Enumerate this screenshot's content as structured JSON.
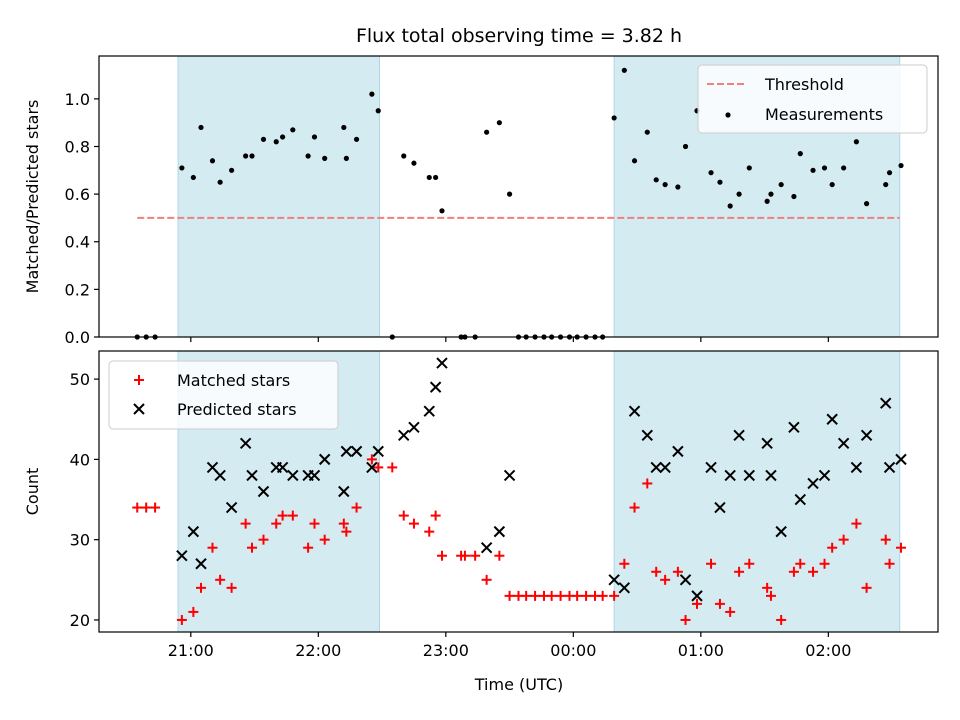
{
  "chart_data": {
    "title": "Flux total observing time = 3.82 h",
    "xlabel": "Time (UTC)",
    "x_ticks": [
      "21:00",
      "22:00",
      "23:00",
      "00:00",
      "01:00",
      "02:00"
    ],
    "x_tick_hours": [
      21,
      22,
      23,
      24,
      25,
      26
    ],
    "xlim_hours": [
      20.28,
      26.86
    ],
    "shaded_intervals_hours": [
      [
        20.9,
        22.48
      ],
      [
        24.32,
        26.56
      ]
    ],
    "colors": {
      "shade": "#add8e6",
      "threshold": "#f08080",
      "measurement": "#000000",
      "matched": "#ff0000",
      "predicted": "#000000"
    },
    "panels": [
      {
        "type": "scatter",
        "ylabel": "Matched/Predicted stars",
        "ylim": [
          0,
          1.18
        ],
        "y_ticks": [
          "0.0",
          "0.2",
          "0.4",
          "0.6",
          "0.8",
          "1.0"
        ],
        "y_tick_values": [
          0,
          0.2,
          0.4,
          0.6,
          0.8,
          1.0
        ],
        "legend_position": "top-right",
        "threshold": {
          "name": "Threshold",
          "value": 0.5,
          "x_range_hours": [
            20.58,
            26.56
          ]
        },
        "series": [
          {
            "name": "Measurements",
            "points": [
              [
                20.58,
                0.0
              ],
              [
                20.65,
                0.0
              ],
              [
                20.72,
                0.0
              ],
              [
                20.93,
                0.71
              ],
              [
                21.02,
                0.67
              ],
              [
                21.08,
                0.88
              ],
              [
                21.17,
                0.74
              ],
              [
                21.23,
                0.65
              ],
              [
                21.32,
                0.7
              ],
              [
                21.43,
                0.76
              ],
              [
                21.48,
                0.76
              ],
              [
                21.57,
                0.83
              ],
              [
                21.67,
                0.82
              ],
              [
                21.72,
                0.84
              ],
              [
                21.8,
                0.87
              ],
              [
                21.92,
                0.76
              ],
              [
                21.97,
                0.84
              ],
              [
                22.05,
                0.75
              ],
              [
                22.2,
                0.88
              ],
              [
                22.22,
                0.75
              ],
              [
                22.3,
                0.83
              ],
              [
                22.42,
                1.02
              ],
              [
                22.47,
                0.95
              ],
              [
                22.58,
                0.0
              ],
              [
                22.67,
                0.76
              ],
              [
                22.75,
                0.73
              ],
              [
                22.87,
                0.67
              ],
              [
                22.92,
                0.67
              ],
              [
                22.97,
                0.53
              ],
              [
                23.12,
                0.0
              ],
              [
                23.15,
                0.0
              ],
              [
                23.23,
                0.0
              ],
              [
                23.32,
                0.86
              ],
              [
                23.42,
                0.9
              ],
              [
                23.5,
                0.6
              ],
              [
                23.57,
                0.0
              ],
              [
                23.63,
                0.0
              ],
              [
                23.7,
                0.0
              ],
              [
                23.77,
                0.0
              ],
              [
                23.83,
                0.0
              ],
              [
                23.9,
                0.0
              ],
              [
                23.97,
                0.0
              ],
              [
                24.03,
                0.0
              ],
              [
                24.1,
                0.0
              ],
              [
                24.17,
                0.0
              ],
              [
                24.23,
                0.0
              ],
              [
                24.32,
                0.92
              ],
              [
                24.4,
                1.12
              ],
              [
                24.48,
                0.74
              ],
              [
                24.58,
                0.86
              ],
              [
                24.65,
                0.66
              ],
              [
                24.72,
                0.64
              ],
              [
                24.82,
                0.63
              ],
              [
                24.88,
                0.8
              ],
              [
                24.97,
                0.95
              ],
              [
                25.08,
                0.69
              ],
              [
                25.15,
                0.65
              ],
              [
                25.23,
                0.55
              ],
              [
                25.3,
                0.6
              ],
              [
                25.38,
                0.71
              ],
              [
                25.52,
                0.57
              ],
              [
                25.55,
                0.6
              ],
              [
                25.63,
                0.64
              ],
              [
                25.73,
                0.59
              ],
              [
                25.78,
                0.77
              ],
              [
                25.88,
                0.7
              ],
              [
                25.97,
                0.71
              ],
              [
                26.03,
                0.64
              ],
              [
                26.12,
                0.71
              ],
              [
                26.22,
                0.82
              ],
              [
                26.3,
                0.56
              ],
              [
                26.45,
                0.64
              ],
              [
                26.48,
                0.69
              ],
              [
                26.57,
                0.72
              ]
            ]
          }
        ]
      },
      {
        "type": "scatter",
        "ylabel": "Count",
        "ylim": [
          18.5,
          53.5
        ],
        "y_ticks": [
          "20",
          "30",
          "40",
          "50"
        ],
        "y_tick_values": [
          20,
          30,
          40,
          50
        ],
        "legend_position": "top-left",
        "series": [
          {
            "name": "Matched stars",
            "marker": "plus",
            "points": [
              [
                20.58,
                34
              ],
              [
                20.65,
                34
              ],
              [
                20.72,
                34
              ],
              [
                20.93,
                20
              ],
              [
                21.02,
                21
              ],
              [
                21.08,
                24
              ],
              [
                21.17,
                29
              ],
              [
                21.23,
                25
              ],
              [
                21.32,
                24
              ],
              [
                21.43,
                32
              ],
              [
                21.48,
                29
              ],
              [
                21.57,
                30
              ],
              [
                21.67,
                32
              ],
              [
                21.72,
                33
              ],
              [
                21.8,
                33
              ],
              [
                21.92,
                29
              ],
              [
                21.97,
                32
              ],
              [
                22.05,
                30
              ],
              [
                22.2,
                32
              ],
              [
                22.22,
                31
              ],
              [
                22.3,
                34
              ],
              [
                22.42,
                40
              ],
              [
                22.47,
                39
              ],
              [
                22.58,
                39
              ],
              [
                22.67,
                33
              ],
              [
                22.75,
                32
              ],
              [
                22.87,
                31
              ],
              [
                22.92,
                33
              ],
              [
                22.97,
                28
              ],
              [
                23.12,
                28
              ],
              [
                23.15,
                28
              ],
              [
                23.23,
                28
              ],
              [
                23.32,
                25
              ],
              [
                23.42,
                28
              ],
              [
                23.5,
                23
              ],
              [
                23.57,
                23
              ],
              [
                23.63,
                23
              ],
              [
                23.7,
                23
              ],
              [
                23.77,
                23
              ],
              [
                23.83,
                23
              ],
              [
                23.9,
                23
              ],
              [
                23.97,
                23
              ],
              [
                24.03,
                23
              ],
              [
                24.1,
                23
              ],
              [
                24.17,
                23
              ],
              [
                24.23,
                23
              ],
              [
                24.32,
                23
              ],
              [
                24.4,
                27
              ],
              [
                24.48,
                34
              ],
              [
                24.58,
                37
              ],
              [
                24.65,
                26
              ],
              [
                24.72,
                25
              ],
              [
                24.82,
                26
              ],
              [
                24.88,
                20
              ],
              [
                24.97,
                22
              ],
              [
                25.08,
                27
              ],
              [
                25.15,
                22
              ],
              [
                25.23,
                21
              ],
              [
                25.3,
                26
              ],
              [
                25.38,
                27
              ],
              [
                25.52,
                24
              ],
              [
                25.55,
                23
              ],
              [
                25.63,
                20
              ],
              [
                25.73,
                26
              ],
              [
                25.78,
                27
              ],
              [
                25.88,
                26
              ],
              [
                25.97,
                27
              ],
              [
                26.03,
                29
              ],
              [
                26.12,
                30
              ],
              [
                26.22,
                32
              ],
              [
                26.3,
                24
              ],
              [
                26.45,
                30
              ],
              [
                26.48,
                27
              ],
              [
                26.57,
                29
              ]
            ]
          },
          {
            "name": "Predicted stars",
            "marker": "x",
            "points": [
              [
                20.93,
                28
              ],
              [
                21.02,
                31
              ],
              [
                21.08,
                27
              ],
              [
                21.17,
                39
              ],
              [
                21.23,
                38
              ],
              [
                21.32,
                34
              ],
              [
                21.43,
                42
              ],
              [
                21.48,
                38
              ],
              [
                21.57,
                36
              ],
              [
                21.67,
                39
              ],
              [
                21.72,
                39
              ],
              [
                21.8,
                38
              ],
              [
                21.92,
                38
              ],
              [
                21.97,
                38
              ],
              [
                22.05,
                40
              ],
              [
                22.2,
                36
              ],
              [
                22.22,
                41
              ],
              [
                22.3,
                41
              ],
              [
                22.42,
                39
              ],
              [
                22.47,
                41
              ],
              [
                22.67,
                43
              ],
              [
                22.75,
                44
              ],
              [
                22.87,
                46
              ],
              [
                22.92,
                49
              ],
              [
                22.97,
                52
              ],
              [
                23.32,
                29
              ],
              [
                23.42,
                31
              ],
              [
                23.5,
                38
              ],
              [
                24.32,
                25
              ],
              [
                24.4,
                24
              ],
              [
                24.48,
                46
              ],
              [
                24.58,
                43
              ],
              [
                24.65,
                39
              ],
              [
                24.72,
                39
              ],
              [
                24.82,
                41
              ],
              [
                24.88,
                25
              ],
              [
                24.97,
                23
              ],
              [
                25.08,
                39
              ],
              [
                25.15,
                34
              ],
              [
                25.23,
                38
              ],
              [
                25.3,
                43
              ],
              [
                25.38,
                38
              ],
              [
                25.52,
                42
              ],
              [
                25.55,
                38
              ],
              [
                25.63,
                31
              ],
              [
                25.73,
                44
              ],
              [
                25.78,
                35
              ],
              [
                25.88,
                37
              ],
              [
                25.97,
                38
              ],
              [
                26.03,
                45
              ],
              [
                26.12,
                42
              ],
              [
                26.22,
                39
              ],
              [
                26.3,
                43
              ],
              [
                26.45,
                47
              ],
              [
                26.48,
                39
              ],
              [
                26.57,
                40
              ]
            ]
          }
        ]
      }
    ]
  }
}
